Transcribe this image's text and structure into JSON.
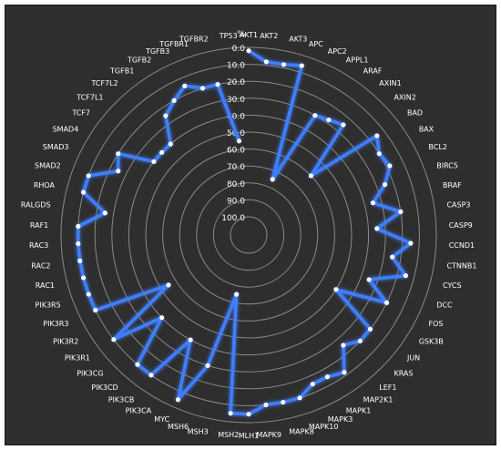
{
  "chart_data": {
    "type": "radar",
    "unit_label": "%",
    "scale": {
      "min": 0,
      "max": 100,
      "step": 10,
      "inverted": true
    },
    "tick_labels": [
      "0.0",
      "10.0",
      "20.0",
      "30.0",
      "40.0",
      "50.0",
      "60.0",
      "70.0",
      "80.0",
      "90.0",
      "100.0"
    ],
    "categories": [
      "AKT1",
      "AKT2",
      "AKT3",
      "APC",
      "APC2",
      "APPL1",
      "ARAF",
      "AXIN1",
      "AXIN2",
      "BAD",
      "BAX",
      "BCL2",
      "BIRC5",
      "BRAF",
      "CASP3",
      "CASP9",
      "CCND1",
      "CTNNB1",
      "CYCS",
      "DCC",
      "FOS",
      "GSK3B",
      "JUN",
      "KRAS",
      "LEF1",
      "MAP2K1",
      "MAPK1",
      "MAPK3",
      "MAPK10",
      "MAPK8",
      "MAPK9",
      "MLH1",
      "MSH2",
      "MSH3",
      "MSH6",
      "MYC",
      "PIK3CA",
      "PIK3CB",
      "PIK3CD",
      "PIK3CG",
      "PIK3R1",
      "PIK3R2",
      "PIK3R3",
      "PIK3R5",
      "RAC1",
      "RAC2",
      "RAC3",
      "RAF1",
      "RALGDS",
      "RHOA",
      "SMAD2",
      "SMAD3",
      "SMAD4",
      "TCF7",
      "TCF7L1",
      "TCF7L2",
      "TGFB1",
      "TGFB2",
      "TGFB3",
      "TGFBR1",
      "TGFBR2",
      "TP53"
    ],
    "values": [
      2,
      8,
      8,
      6,
      75,
      30,
      28,
      25,
      60,
      15,
      20,
      18,
      25,
      35,
      20,
      35,
      15,
      25,
      15,
      35,
      20,
      50,
      20,
      20,
      25,
      12,
      15,
      15,
      10,
      10,
      10,
      5,
      5,
      75,
      30,
      5,
      40,
      10,
      10,
      40,
      10,
      55,
      10,
      10,
      10,
      10,
      10,
      10,
      25,
      10,
      10,
      25,
      20,
      40,
      40,
      40,
      25,
      20,
      15,
      20,
      20,
      55
    ],
    "series_color": "#3f7fff",
    "grid": true
  }
}
